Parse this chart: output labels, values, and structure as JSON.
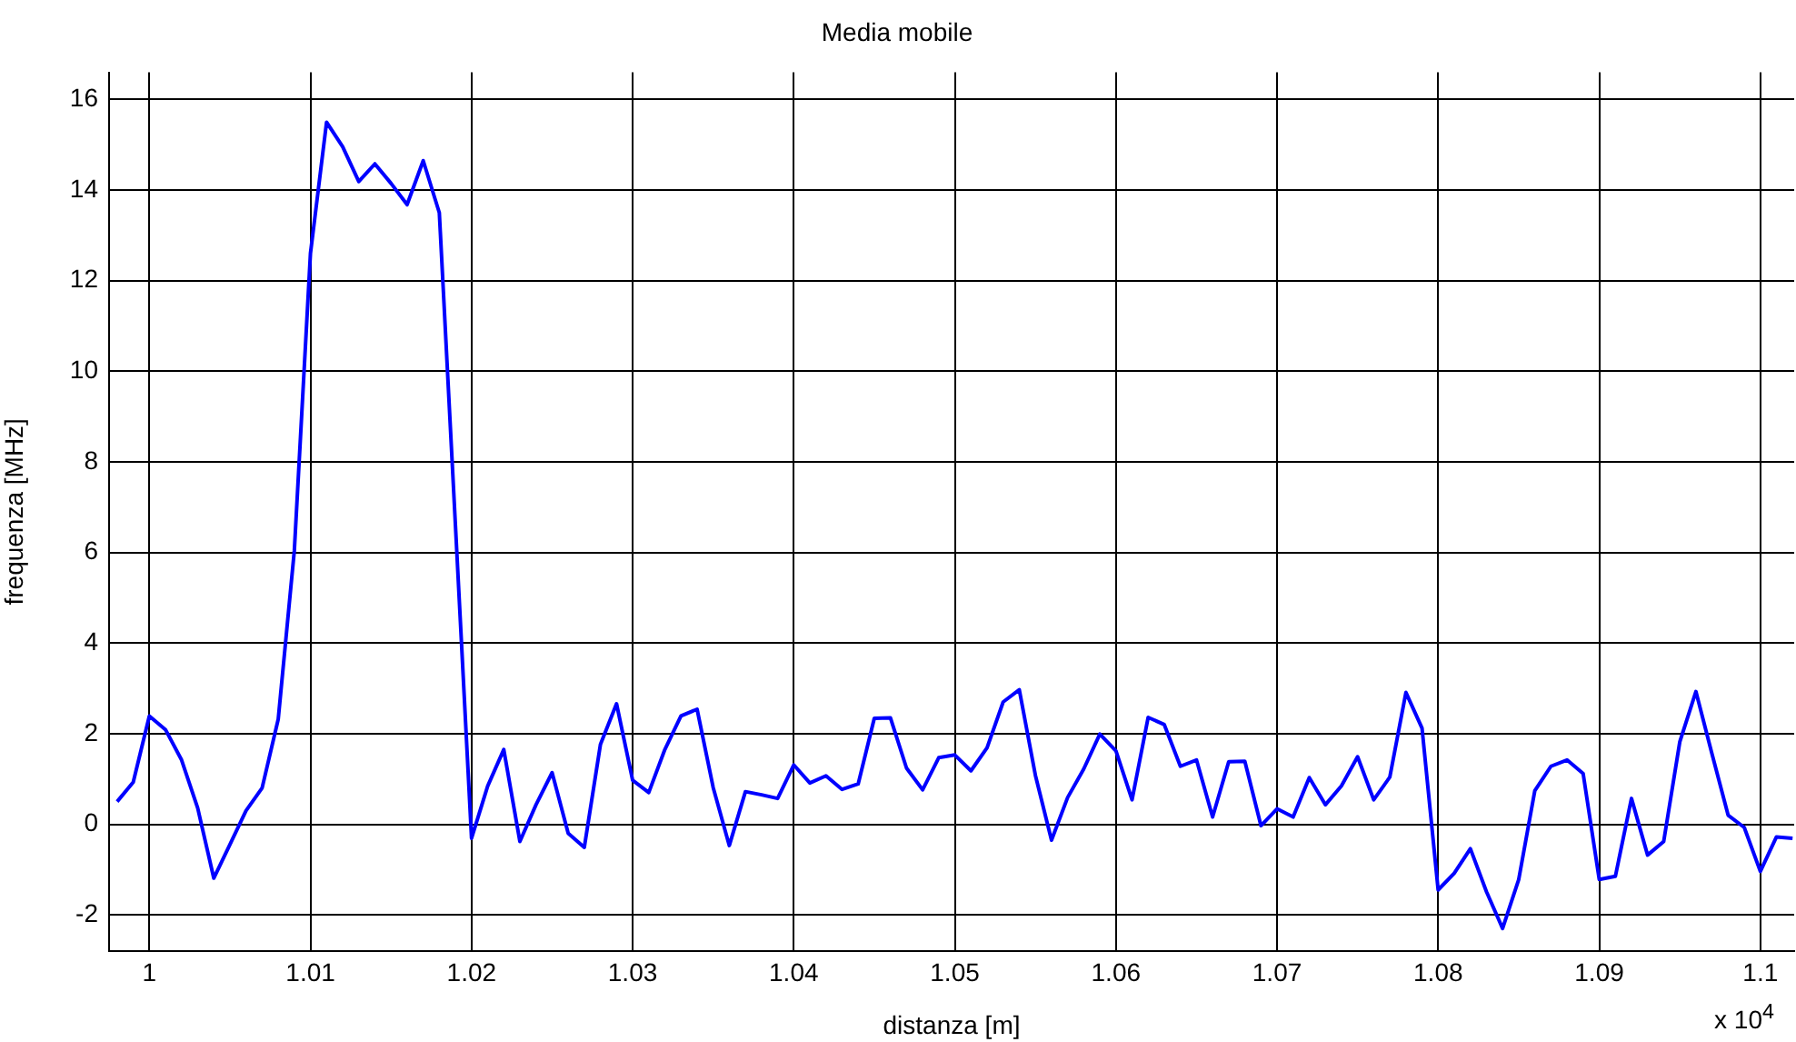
{
  "chart_data": {
    "type": "line",
    "title": "Media mobile",
    "xlabel": "distanza [m]",
    "ylabel": "frequenza [MHz]",
    "annotations": [
      "x 10$^{4}$"
    ],
    "x": [
      0.998,
      0.999,
      1.0,
      1.001,
      1.002,
      1.003,
      1.004,
      1.005,
      1.006,
      1.007,
      1.008,
      1.009,
      1.01,
      1.011,
      1.012,
      1.013,
      1.014,
      1.015,
      1.016,
      1.017,
      1.018,
      1.019,
      1.02,
      1.021,
      1.022,
      1.023,
      1.024,
      1.025,
      1.026,
      1.027,
      1.028,
      1.029,
      1.03,
      1.031,
      1.032,
      1.033,
      1.034,
      1.035,
      1.036,
      1.037,
      1.038,
      1.039,
      1.04,
      1.041,
      1.042,
      1.043,
      1.044,
      1.045,
      1.046,
      1.047,
      1.048,
      1.049,
      1.05,
      1.051,
      1.052,
      1.053,
      1.054,
      1.055,
      1.056,
      1.057,
      1.058,
      1.059,
      1.06,
      1.061,
      1.062,
      1.063,
      1.064,
      1.065,
      1.066,
      1.067,
      1.068,
      1.069,
      1.07,
      1.071,
      1.072,
      1.073,
      1.074,
      1.075,
      1.076,
      1.077,
      1.078,
      1.079,
      1.08,
      1.081,
      1.082,
      1.083,
      1.084,
      1.085,
      1.086,
      1.087,
      1.088,
      1.089,
      1.09,
      1.091,
      1.092,
      1.093,
      1.094,
      1.095,
      1.096,
      1.097,
      1.098,
      1.099,
      1.1,
      1.101,
      1.102
    ],
    "series": [
      {
        "color": "#0000ff",
        "values": [
          0.5,
          0.93,
          2.39,
          2.09,
          1.42,
          0.36,
          -1.19,
          -0.45,
          0.3,
          0.8,
          2.32,
          6.04,
          12.6,
          15.5,
          14.96,
          14.19,
          14.58,
          14.15,
          13.68,
          14.65,
          13.5,
          6.6,
          -0.31,
          0.84,
          1.65,
          -0.38,
          0.43,
          1.14,
          -0.2,
          -0.51,
          1.76,
          2.66,
          0.97,
          0.7,
          1.65,
          2.39,
          2.54,
          0.81,
          -0.47,
          0.72,
          0.65,
          0.57,
          1.31,
          0.91,
          1.07,
          0.77,
          0.89,
          2.34,
          2.35,
          1.24,
          0.76,
          1.47,
          1.53,
          1.18,
          1.69,
          2.7,
          2.97,
          1.08,
          -0.35,
          0.59,
          1.22,
          1.99,
          1.62,
          0.54,
          2.36,
          2.2,
          1.28,
          1.42,
          0.16,
          1.38,
          1.39,
          -0.03,
          0.34,
          0.16,
          1.03,
          0.43,
          0.85,
          1.49,
          0.54,
          1.04,
          2.91,
          2.12,
          -1.45,
          -1.08,
          -0.54,
          -1.49,
          -2.3,
          -1.22,
          0.74,
          1.28,
          1.42,
          1.12,
          -1.22,
          -1.15,
          0.57,
          -0.68,
          -0.38,
          1.82,
          2.93,
          1.55,
          0.2,
          -0.07,
          -1.04,
          -0.28,
          -0.31
        ]
      }
    ],
    "xlim": [
      0.9975,
      1.1021
    ],
    "ylim": [
      -2.8,
      16.6
    ],
    "xticks": [
      1,
      1.01,
      1.02,
      1.03,
      1.04,
      1.05,
      1.06,
      1.07,
      1.08,
      1.09,
      1.1
    ],
    "yticks": [
      -2,
      0,
      2,
      4,
      6,
      8,
      10,
      12,
      14,
      16
    ],
    "grid": true,
    "legend": false,
    "marker": "none",
    "line_style": "solid"
  }
}
